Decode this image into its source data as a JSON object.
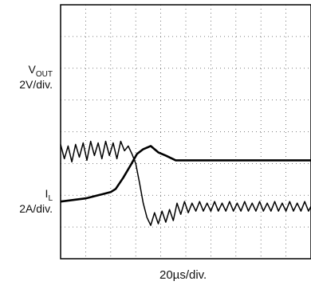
{
  "chart_data": {
    "type": "line",
    "title": "",
    "xlabel": "20µs/div.",
    "ylabel": "",
    "grid": true,
    "grid_divisions": {
      "x": 10,
      "y": 8
    },
    "x_unit": "div",
    "xlim": [
      0,
      10
    ],
    "series": [
      {
        "name": "VOUT",
        "scale": "2V/div.",
        "x": [
          0,
          0.5,
          1.0,
          1.5,
          2.0,
          2.2,
          2.5,
          2.8,
          3.05,
          3.3,
          3.6,
          3.9,
          4.2,
          4.6,
          5.0,
          6.0,
          7.0,
          8.0,
          9.0,
          10.0
        ],
        "y": [
          1.8,
          1.85,
          1.9,
          2.0,
          2.1,
          2.2,
          2.55,
          2.95,
          3.3,
          3.45,
          3.55,
          3.35,
          3.25,
          3.1,
          3.1,
          3.1,
          3.1,
          3.1,
          3.1,
          3.1
        ]
      },
      {
        "name": "IL",
        "scale": "2A/div.",
        "x": [
          0,
          0.15,
          0.3,
          0.45,
          0.6,
          0.75,
          0.9,
          1.05,
          1.2,
          1.35,
          1.5,
          1.65,
          1.8,
          1.95,
          2.1,
          2.25,
          2.4,
          2.55,
          2.7,
          2.85,
          3.0,
          3.15,
          3.3,
          3.45,
          3.6,
          3.75,
          3.9,
          4.05,
          4.2,
          4.35,
          4.5,
          4.65,
          4.8,
          4.95,
          5.1,
          5.25,
          5.4,
          5.55,
          5.7,
          5.85,
          6.0,
          6.15,
          6.3,
          6.45,
          6.6,
          6.75,
          6.9,
          7.05,
          7.2,
          7.35,
          7.5,
          7.65,
          7.8,
          7.95,
          8.1,
          8.25,
          8.4,
          8.55,
          8.7,
          8.85,
          9.0,
          9.15,
          9.3,
          9.45,
          9.6,
          9.75,
          9.9,
          10.0
        ],
        "y": [
          3.6,
          3.15,
          3.55,
          3.05,
          3.6,
          3.2,
          3.65,
          3.1,
          3.7,
          3.25,
          3.65,
          3.15,
          3.7,
          3.25,
          3.65,
          3.15,
          3.7,
          3.4,
          3.55,
          3.3,
          3.0,
          2.4,
          1.75,
          1.3,
          1.05,
          1.45,
          1.1,
          1.5,
          1.15,
          1.55,
          1.2,
          1.75,
          1.4,
          1.8,
          1.45,
          1.75,
          1.5,
          1.8,
          1.5,
          1.75,
          1.5,
          1.8,
          1.5,
          1.75,
          1.5,
          1.8,
          1.5,
          1.75,
          1.5,
          1.8,
          1.5,
          1.75,
          1.5,
          1.8,
          1.5,
          1.75,
          1.5,
          1.8,
          1.5,
          1.75,
          1.5,
          1.8,
          1.5,
          1.75,
          1.5,
          1.8,
          1.5,
          1.65
        ]
      }
    ]
  },
  "labels": {
    "vout_main": "V",
    "vout_sub": "OUT",
    "vout_scale": "2V/div.",
    "il_main": "I",
    "il_sub": "L",
    "il_scale": "2A/div.",
    "time_scale": "20µs/div."
  }
}
